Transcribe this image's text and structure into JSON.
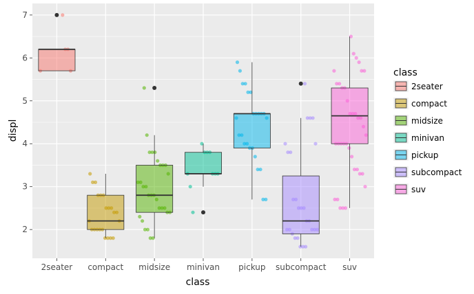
{
  "chart_data": {
    "type": "boxplot",
    "xlabel": "class",
    "ylabel": "displ",
    "ylim": [
      1.33,
      7.27
    ],
    "yticks": [
      2,
      3,
      4,
      5,
      6,
      7
    ],
    "grid": true,
    "legend_position": "right",
    "legend_title": "class",
    "categories": [
      "2seater",
      "compact",
      "midsize",
      "minivan",
      "pickup",
      "subcompact",
      "suv"
    ],
    "colors": [
      "#F8766D",
      "#C49A00",
      "#53B400",
      "#00C094",
      "#00B6EB",
      "#A58AFF",
      "#FB61D7"
    ],
    "boxes": [
      {
        "q1": 5.7,
        "median": 6.2,
        "q3": 6.2,
        "whisker_low": 5.7,
        "whisker_high": 6.2,
        "outliers": [
          7.0
        ]
      },
      {
        "q1": 2.0,
        "median": 2.2,
        "q3": 2.8,
        "whisker_low": 1.8,
        "whisker_high": 3.3,
        "outliers": []
      },
      {
        "q1": 2.4,
        "median": 2.8,
        "q3": 3.5,
        "whisker_low": 1.8,
        "whisker_high": 4.2,
        "outliers": [
          5.3
        ]
      },
      {
        "q1": 3.3,
        "median": 3.3,
        "q3": 3.8,
        "whisker_low": 3.0,
        "whisker_high": 4.0,
        "outliers": [
          2.4
        ]
      },
      {
        "q1": 3.9,
        "median": 4.7,
        "q3": 4.7,
        "whisker_low": 2.7,
        "whisker_high": 5.9,
        "outliers": []
      },
      {
        "q1": 1.9,
        "median": 2.2,
        "q3": 3.25,
        "whisker_low": 1.6,
        "whisker_high": 4.6,
        "outliers": [
          5.4
        ]
      },
      {
        "q1": 4.0,
        "median": 4.65,
        "q3": 5.3,
        "whisker_low": 2.5,
        "whisker_high": 6.5,
        "outliers": []
      }
    ],
    "points": [
      [
        5.7,
        5.7,
        6.2,
        6.2,
        7.0
      ],
      [
        1.8,
        1.8,
        1.8,
        1.8,
        2.0,
        2.0,
        2.0,
        2.0,
        2.0,
        2.2,
        2.2,
        2.4,
        2.4,
        2.5,
        2.5,
        2.5,
        2.8,
        2.8,
        2.8,
        3.1,
        3.1,
        3.3
      ],
      [
        1.8,
        1.8,
        2.0,
        2.0,
        2.2,
        2.3,
        2.4,
        2.4,
        2.5,
        2.5,
        2.5,
        2.7,
        2.8,
        2.8,
        2.8,
        3.0,
        3.0,
        3.1,
        3.1,
        3.3,
        3.5,
        3.5,
        3.5,
        3.6,
        3.8,
        3.8,
        3.8,
        4.2,
        5.3
      ],
      [
        2.4,
        3.0,
        3.3,
        3.3,
        3.3,
        3.3,
        3.8,
        3.8,
        3.8,
        4.0
      ],
      [
        2.7,
        2.7,
        3.4,
        3.4,
        3.7,
        3.9,
        3.9,
        4.0,
        4.0,
        4.2,
        4.2,
        4.6,
        4.6,
        4.7,
        4.7,
        4.7,
        4.7,
        4.7,
        5.2,
        5.2,
        5.4,
        5.4,
        5.7,
        5.9
      ],
      [
        1.6,
        1.6,
        1.6,
        1.8,
        1.8,
        1.9,
        2.0,
        2.0,
        2.0,
        2.0,
        2.0,
        2.2,
        2.2,
        2.5,
        2.5,
        2.5,
        2.7,
        2.7,
        3.8,
        3.8,
        4.0,
        4.0,
        4.6,
        4.6,
        4.6,
        5.4
      ],
      [
        2.5,
        2.5,
        2.5,
        2.7,
        2.7,
        3.0,
        3.3,
        3.3,
        3.4,
        3.4,
        3.7,
        3.9,
        4.0,
        4.0,
        4.0,
        4.0,
        4.0,
        4.2,
        4.4,
        4.6,
        4.6,
        4.7,
        4.7,
        4.7,
        5.0,
        5.3,
        5.3,
        5.4,
        5.4,
        5.7,
        5.7,
        5.7,
        5.9,
        6.0,
        6.1,
        6.5
      ]
    ]
  }
}
